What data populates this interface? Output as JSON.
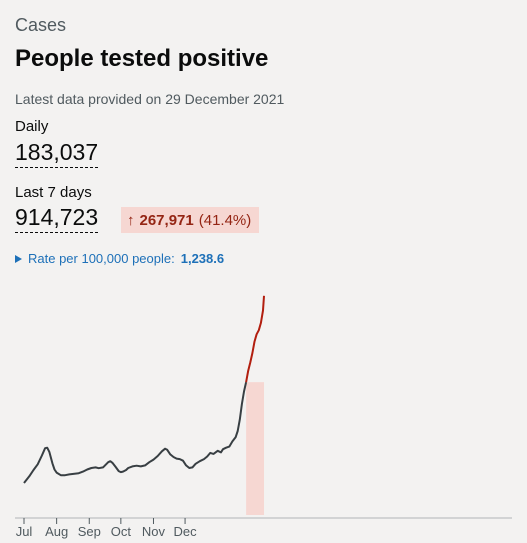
{
  "card": {
    "category": "Cases",
    "title": "People tested positive",
    "latest": "Latest data provided on 29 December 2021",
    "daily": {
      "label": "Daily",
      "value": "183,037"
    },
    "last7": {
      "label": "Last 7 days",
      "value": "914,723"
    },
    "change": {
      "arrow": "↑",
      "value": "267,971",
      "percent": "(41.4%)"
    },
    "rate": {
      "label": "Rate per 100,000 people:",
      "value": "1,238.6"
    }
  },
  "colors": {
    "background": "#f3f2f1",
    "line_normal": "#383f43",
    "line_recent": "#b21e0f",
    "recent_fill": "#f6d7d2",
    "link": "#1d70b8"
  },
  "chart_data": {
    "type": "line",
    "title": "",
    "xlabel": "",
    "ylabel": "",
    "x_ticks": [
      "Jul",
      "Aug",
      "Sep",
      "Oct",
      "Nov",
      "Dec"
    ],
    "grid": false,
    "y_axis_shown": false,
    "series": [
      {
        "values": [
          [
            0,
            24000
          ],
          [
            5,
            30500
          ],
          [
            9,
            36500
          ],
          [
            13,
            42000
          ],
          [
            17,
            50500
          ],
          [
            20,
            57500
          ],
          [
            22,
            58000
          ],
          [
            24,
            54000
          ],
          [
            27,
            43000
          ],
          [
            29,
            37000
          ],
          [
            31,
            34000
          ],
          [
            35,
            31500
          ],
          [
            39,
            31500
          ],
          [
            43,
            32300
          ],
          [
            48,
            33000
          ],
          [
            52,
            33500
          ],
          [
            56,
            35000
          ],
          [
            60,
            37000
          ],
          [
            64,
            38500
          ],
          [
            68,
            39000
          ],
          [
            71,
            38300
          ],
          [
            75,
            39000
          ],
          [
            78,
            42000
          ],
          [
            80,
            44000
          ],
          [
            82,
            45000
          ],
          [
            84,
            43500
          ],
          [
            87,
            39500
          ],
          [
            90,
            35500
          ],
          [
            92,
            34500
          ],
          [
            94,
            35000
          ],
          [
            97,
            36500
          ],
          [
            99,
            38500
          ],
          [
            103,
            40000
          ],
          [
            107,
            40700
          ],
          [
            111,
            40000
          ],
          [
            115,
            41000
          ],
          [
            119,
            44000
          ],
          [
            123,
            46500
          ],
          [
            127,
            50000
          ],
          [
            131,
            54500
          ],
          [
            134,
            57000
          ],
          [
            136,
            56000
          ],
          [
            139,
            51500
          ],
          [
            142,
            49000
          ],
          [
            145,
            47500
          ],
          [
            148,
            47000
          ],
          [
            151,
            45500
          ],
          [
            154,
            41000
          ],
          [
            157,
            38500
          ],
          [
            160,
            39000
          ],
          [
            163,
            42500
          ],
          [
            167,
            45000
          ],
          [
            171,
            47000
          ],
          [
            174,
            49500
          ],
          [
            177,
            53000
          ],
          [
            180,
            52000
          ],
          [
            184,
            55000
          ],
          [
            187,
            53500
          ],
          [
            189,
            56500
          ],
          [
            192,
            58000
          ],
          [
            195,
            59000
          ],
          [
            198,
            64000
          ],
          [
            201,
            68000
          ],
          [
            203,
            74000
          ],
          [
            205,
            85000
          ],
          [
            207,
            100000
          ],
          [
            209,
            112000
          ],
          [
            211,
            121000
          ]
        ]
      },
      {
        "values": [
          [
            211,
            121000
          ],
          [
            213,
            132000
          ],
          [
            215,
            140000
          ],
          [
            217,
            149000
          ],
          [
            219,
            160000
          ],
          [
            221,
            167000
          ],
          [
            223,
            171000
          ],
          [
            225,
            178000
          ],
          [
            227,
            190000
          ],
          [
            228,
            204000
          ]
        ]
      }
    ],
    "recent_start": 211,
    "recent_end": 228
  }
}
